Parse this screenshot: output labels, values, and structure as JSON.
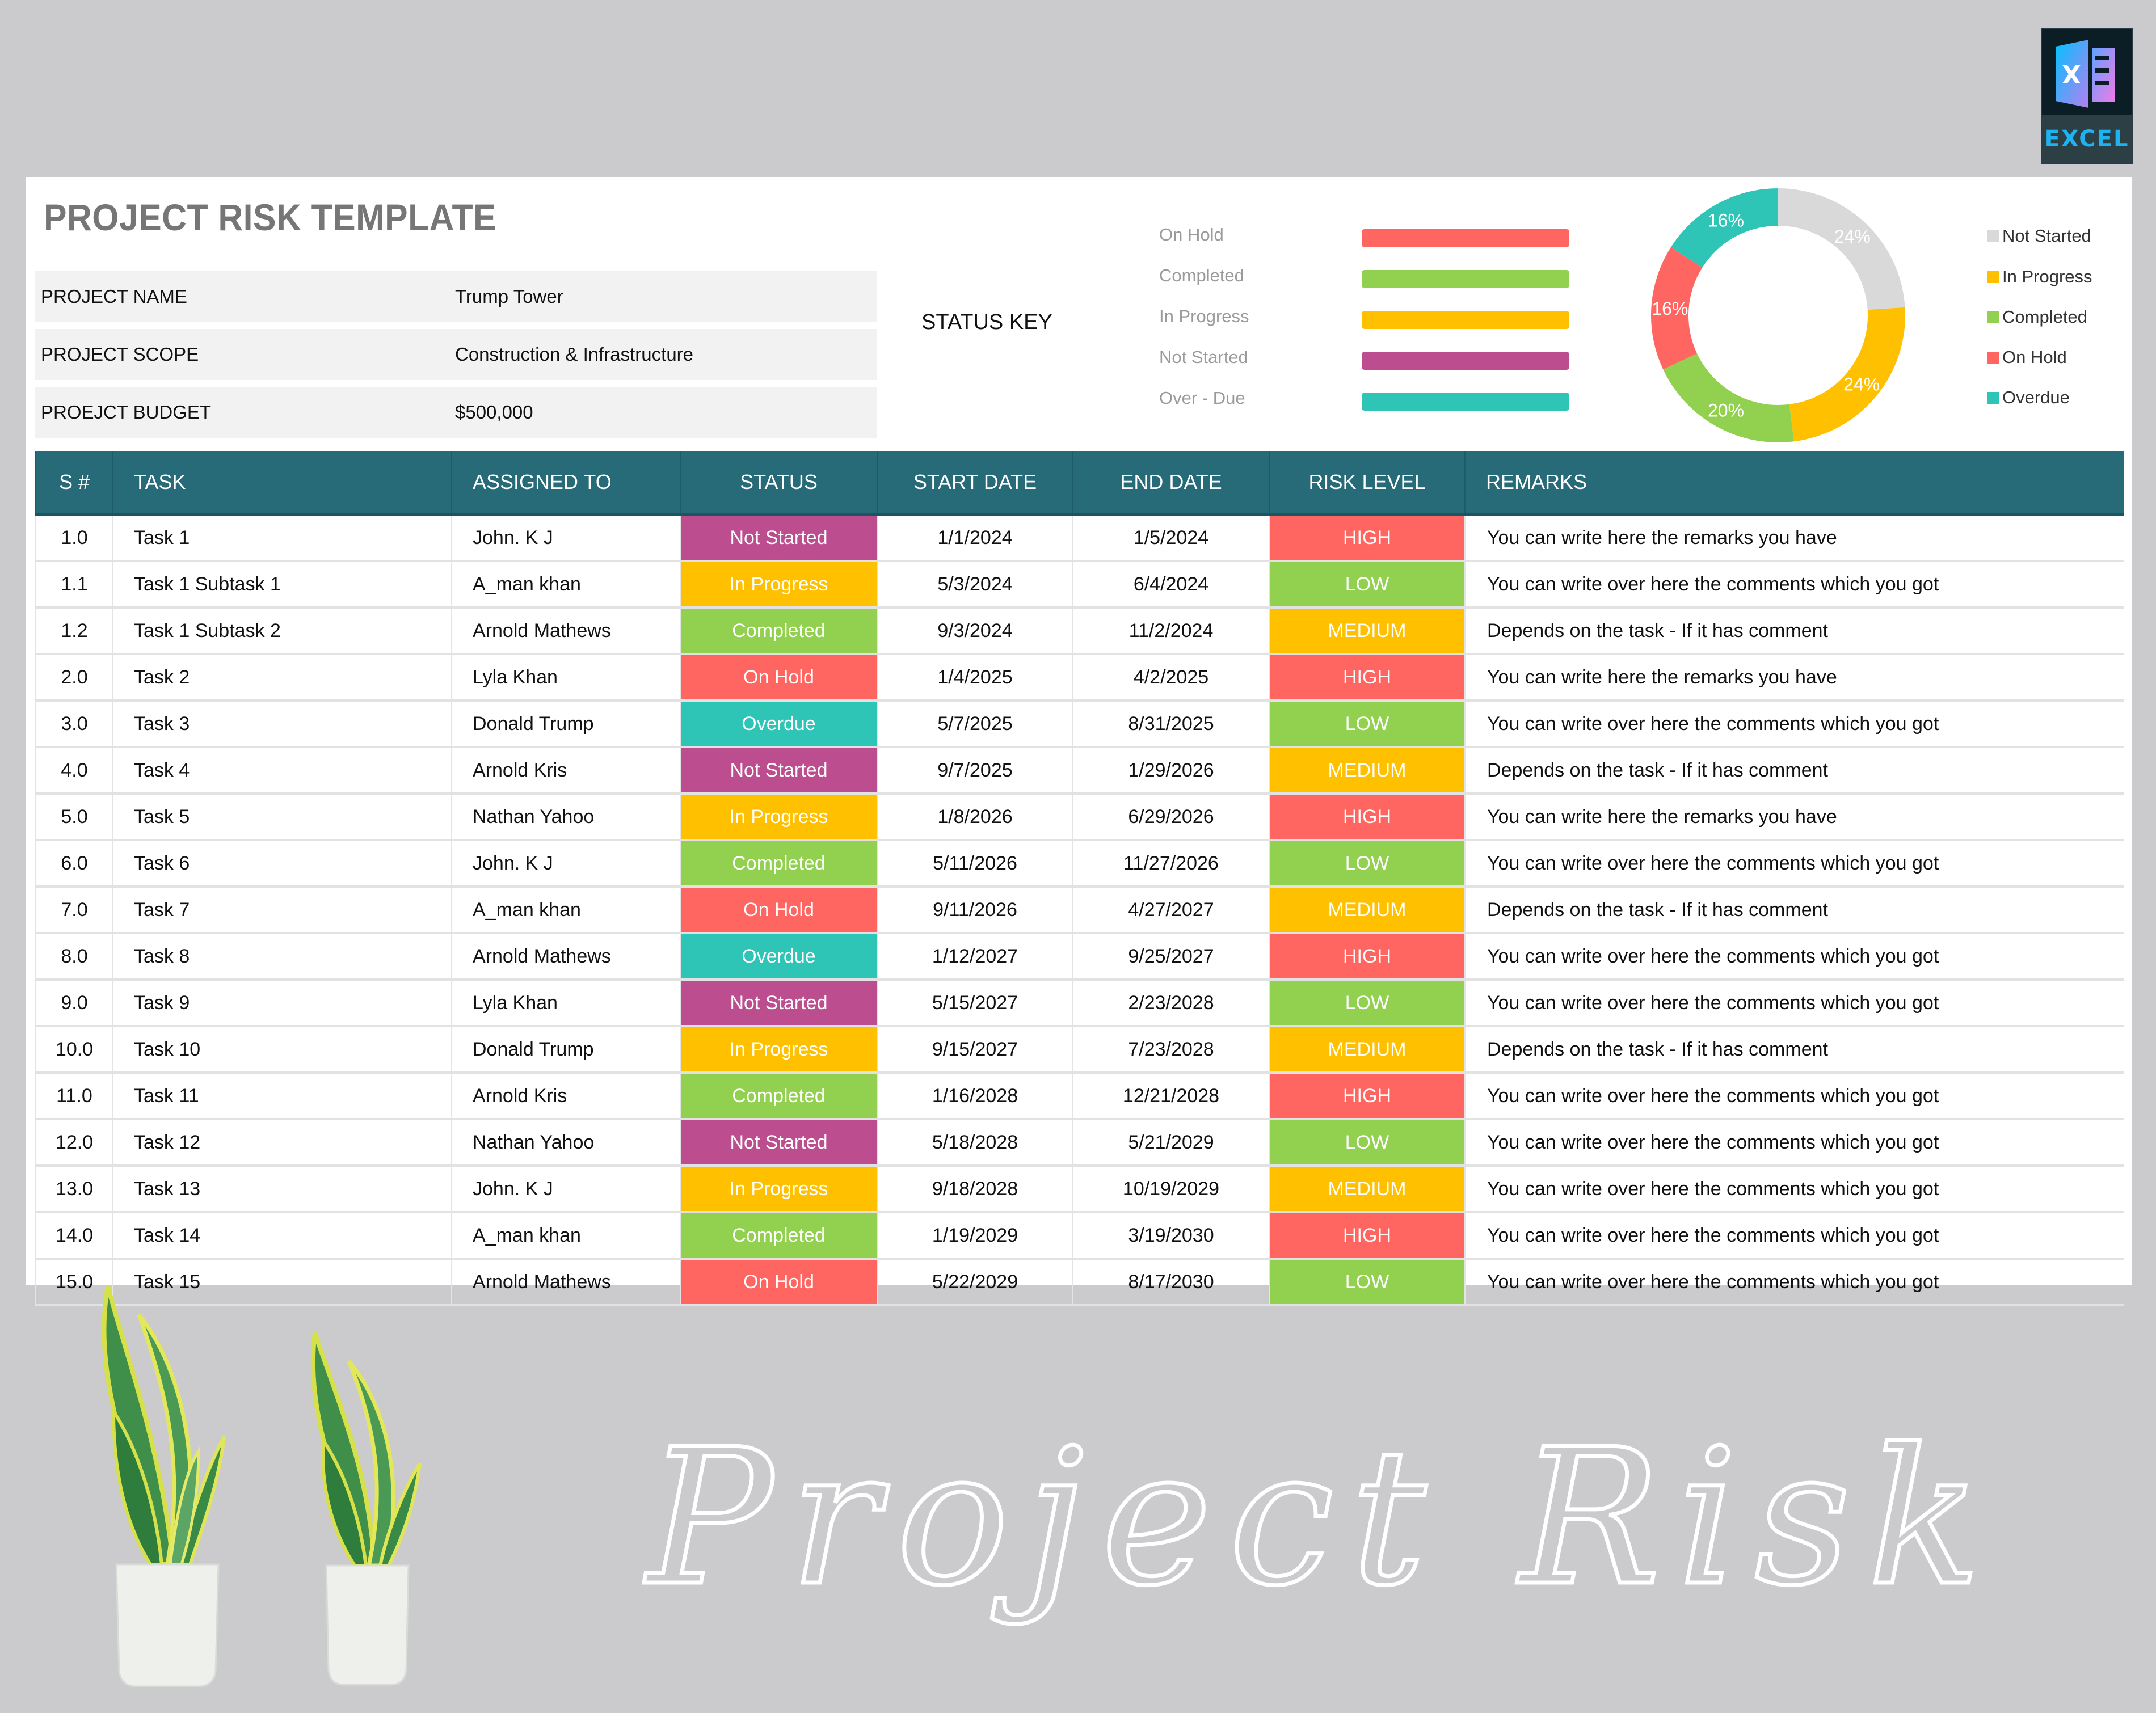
{
  "badge": {
    "letter": "X",
    "label": "EXCEL"
  },
  "title": "PROJECT RISK TEMPLATE",
  "project_info": [
    {
      "label": "PROJECT NAME",
      "value": "Trump Tower"
    },
    {
      "label": "PROJECT SCOPE",
      "value": "Construction & Infrastructure"
    },
    {
      "label": "PROEJCT BUDGET",
      "value": "$500,000"
    }
  ],
  "status_key": {
    "label": "STATUS KEY",
    "items": [
      {
        "label": "On Hold",
        "color": "#ff6661"
      },
      {
        "label": "Completed",
        "color": "#92d050"
      },
      {
        "label": "In Progress",
        "color": "#ffc000"
      },
      {
        "label": "Not Started",
        "color": "#bc4e8f"
      },
      {
        "label": "Over - Due",
        "color": "#2ec4b6"
      }
    ]
  },
  "chart_data": {
    "type": "pie",
    "subtype": "donut",
    "title": "",
    "categories": [
      "Not Started",
      "In Progress",
      "Completed",
      "On Hold",
      "Overdue"
    ],
    "values": [
      24,
      24,
      20,
      16,
      16
    ],
    "labels": [
      "24%",
      "24%",
      "20%",
      "16%",
      "16%"
    ],
    "colors": [
      "#d9d9d9",
      "#ffc000",
      "#92d050",
      "#ff6661",
      "#2ec4b6"
    ],
    "legend_position": "right",
    "start_angle": "12 o'clock, clockwise"
  },
  "legend": [
    {
      "label": "Not Started",
      "color": "#d9d9d9"
    },
    {
      "label": "In Progress",
      "color": "#ffc000"
    },
    {
      "label": "Completed",
      "color": "#92d050"
    },
    {
      "label": "On Hold",
      "color": "#ff6661"
    },
    {
      "label": "Overdue",
      "color": "#2ec4b6"
    }
  ],
  "table": {
    "columns": [
      "S #",
      "TASK",
      "ASSIGNED TO",
      "STATUS",
      "START DATE",
      "END DATE",
      "RISK LEVEL",
      "REMARKS"
    ],
    "rows": [
      {
        "sn": "1.0",
        "task": "Task 1",
        "assigned": "John. K J",
        "status": "Not Started",
        "start": "1/1/2024",
        "end": "1/5/2024",
        "risk": "HIGH",
        "remarks": "You can write here the remarks you have"
      },
      {
        "sn": "1.1",
        "task": "Task 1 Subtask 1",
        "assigned": "A_man khan",
        "status": "In Progress",
        "start": "5/3/2024",
        "end": "6/4/2024",
        "risk": "LOW",
        "remarks": "You can write over here the comments which you got"
      },
      {
        "sn": "1.2",
        "task": "Task 1 Subtask 2",
        "assigned": "Arnold Mathews",
        "status": "Completed",
        "start": "9/3/2024",
        "end": "11/2/2024",
        "risk": "MEDIUM",
        "remarks": "Depends on the task - If it has comment"
      },
      {
        "sn": "2.0",
        "task": "Task 2",
        "assigned": "Lyla Khan",
        "status": "On Hold",
        "start": "1/4/2025",
        "end": "4/2/2025",
        "risk": "HIGH",
        "remarks": "You can write here the remarks you have"
      },
      {
        "sn": "3.0",
        "task": "Task 3",
        "assigned": "Donald Trump",
        "status": "Overdue",
        "start": "5/7/2025",
        "end": "8/31/2025",
        "risk": "LOW",
        "remarks": "You can write over here the comments which you got"
      },
      {
        "sn": "4.0",
        "task": "Task 4",
        "assigned": "Arnold Kris",
        "status": "Not Started",
        "start": "9/7/2025",
        "end": "1/29/2026",
        "risk": "MEDIUM",
        "remarks": "Depends on the task - If it has comment"
      },
      {
        "sn": "5.0",
        "task": "Task 5",
        "assigned": "Nathan Yahoo",
        "status": "In Progress",
        "start": "1/8/2026",
        "end": "6/29/2026",
        "risk": "HIGH",
        "remarks": "You can write here the remarks you have"
      },
      {
        "sn": "6.0",
        "task": "Task 6",
        "assigned": "John. K J",
        "status": "Completed",
        "start": "5/11/2026",
        "end": "11/27/2026",
        "risk": "LOW",
        "remarks": "You can write over here the comments which you got"
      },
      {
        "sn": "7.0",
        "task": "Task 7",
        "assigned": "A_man khan",
        "status": "On Hold",
        "start": "9/11/2026",
        "end": "4/27/2027",
        "risk": "MEDIUM",
        "remarks": "Depends on the task - If it has comment"
      },
      {
        "sn": "8.0",
        "task": "Task 8",
        "assigned": "Arnold Mathews",
        "status": "Overdue",
        "start": "1/12/2027",
        "end": "9/25/2027",
        "risk": "HIGH",
        "remarks": "You can write over here the comments which you got"
      },
      {
        "sn": "9.0",
        "task": "Task 9",
        "assigned": "Lyla Khan",
        "status": "Not Started",
        "start": "5/15/2027",
        "end": "2/23/2028",
        "risk": "LOW",
        "remarks": "You can write over here the comments which you got"
      },
      {
        "sn": "10.0",
        "task": "Task 10",
        "assigned": "Donald Trump",
        "status": "In Progress",
        "start": "9/15/2027",
        "end": "7/23/2028",
        "risk": "MEDIUM",
        "remarks": "Depends on the task - If it has comment"
      },
      {
        "sn": "11.0",
        "task": "Task 11",
        "assigned": "Arnold Kris",
        "status": "Completed",
        "start": "1/16/2028",
        "end": "12/21/2028",
        "risk": "HIGH",
        "remarks": "You can write over here the comments which you got"
      },
      {
        "sn": "12.0",
        "task": "Task 12",
        "assigned": "Nathan Yahoo",
        "status": "Not Started",
        "start": "5/18/2028",
        "end": "5/21/2029",
        "risk": "LOW",
        "remarks": "You can write over here the comments which you got"
      },
      {
        "sn": "13.0",
        "task": "Task 13",
        "assigned": "John. K J",
        "status": "In Progress",
        "start": "9/18/2028",
        "end": "10/19/2029",
        "risk": "MEDIUM",
        "remarks": "You can write over here the comments which you got"
      },
      {
        "sn": "14.0",
        "task": "Task 14",
        "assigned": "A_man khan",
        "status": "Completed",
        "start": "1/19/2029",
        "end": "3/19/2030",
        "risk": "HIGH",
        "remarks": "You can write over here the comments which you got"
      },
      {
        "sn": "15.0",
        "task": "Task 15",
        "assigned": "Arnold Mathews",
        "status": "On Hold",
        "start": "5/22/2029",
        "end": "8/17/2030",
        "risk": "LOW",
        "remarks": "You can write over here the comments which you got"
      }
    ]
  },
  "status_colors": {
    "Not Started": "#bc4e8f",
    "In Progress": "#ffc000",
    "Completed": "#92d050",
    "On Hold": "#ff6661",
    "Overdue": "#2ec4b6"
  },
  "risk_colors": {
    "HIGH": "#ff6661",
    "LOW": "#92d050",
    "MEDIUM": "#ffc000"
  },
  "colors": {
    "header_bg": "#276a78",
    "page_bg": "#cbcbcd",
    "title": "#767676"
  },
  "decor": {
    "script_text": "Project Risk"
  }
}
